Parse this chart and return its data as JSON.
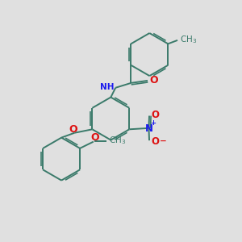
{
  "bg_color": "#e0e0e0",
  "bond_color": "#3a7a6a",
  "bond_width": 1.4,
  "atom_colors": {
    "N": "#1a1aee",
    "O": "#dd1111",
    "C": "#3a7a6a"
  },
  "font_size": 7.5,
  "dbl_sep": 0.07
}
